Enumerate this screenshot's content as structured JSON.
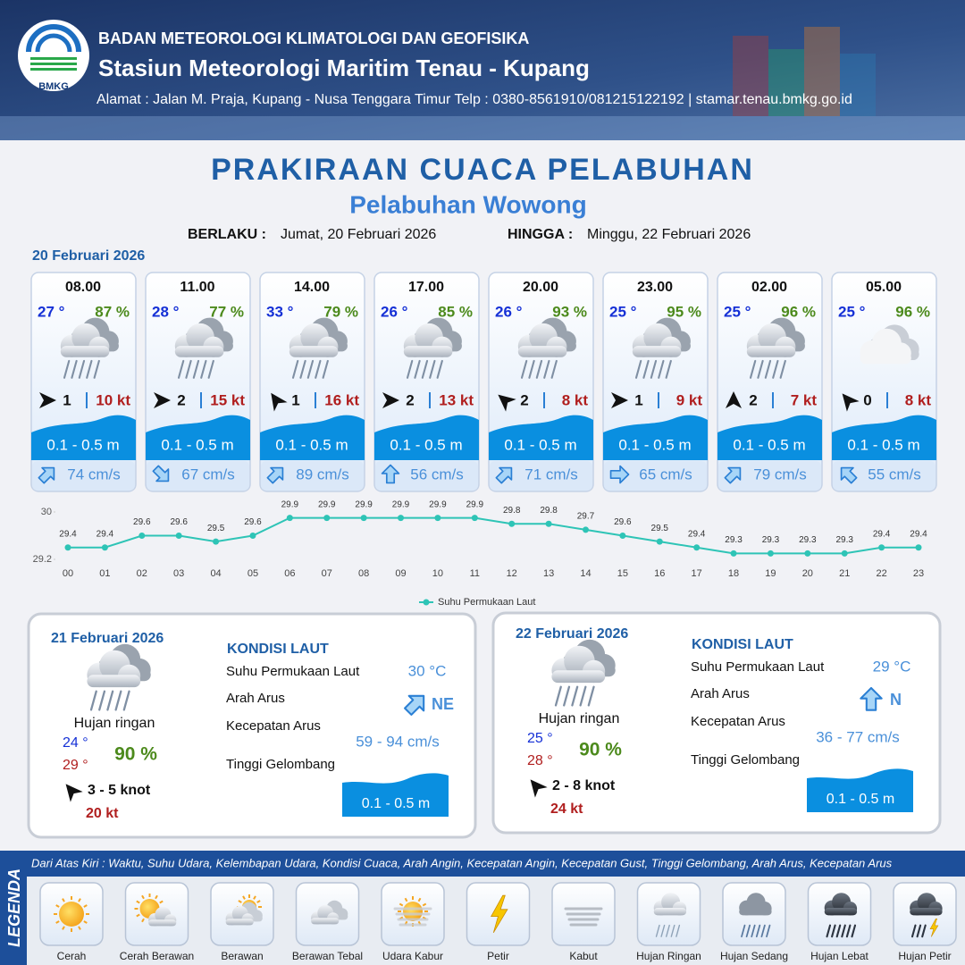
{
  "header": {
    "agency": "BADAN METEOROLOGI KLIMATOLOGI DAN GEOFISIKA",
    "station": "Stasiun Meteorologi Maritim Tenau - Kupang",
    "address": "Alamat : Jalan M. Praja, Kupang - Nusa Tenggara Timur Telp : 0380-8561910/081215122192  | stamar.tenau.bmkg.go.id",
    "logo": "BMKG"
  },
  "title": "PRAKIRAAN CUACA PELABUHAN",
  "subtitle": "Pelabuhan Wowong",
  "validity": {
    "from_label": "BERLAKU :",
    "from": "Jumat, 20 Februari 2026",
    "to_label": "HINGGA :",
    "to": "Minggu, 22 Februari 2026"
  },
  "day1": {
    "date": "20 Februari 2026",
    "cards": [
      {
        "time": "08.00",
        "temp": "27 °",
        "humidity": "87 %",
        "wind": "1",
        "gust": "10 kt",
        "wave": "0.1 - 0.5 m",
        "current": "74 cm/s"
      },
      {
        "time": "11.00",
        "temp": "28 °",
        "humidity": "77 %",
        "wind": "2",
        "gust": "15 kt",
        "wave": "0.1 - 0.5 m",
        "current": "67 cm/s"
      },
      {
        "time": "14.00",
        "temp": "33 °",
        "humidity": "79 %",
        "wind": "1",
        "gust": "16 kt",
        "wave": "0.1 - 0.5 m",
        "current": "89 cm/s"
      },
      {
        "time": "17.00",
        "temp": "26 °",
        "humidity": "85 %",
        "wind": "2",
        "gust": "13 kt",
        "wave": "0.1 - 0.5 m",
        "current": "56 cm/s"
      },
      {
        "time": "20.00",
        "temp": "26 °",
        "humidity": "93 %",
        "wind": "2",
        "gust": "8 kt",
        "wave": "0.1 - 0.5 m",
        "current": "71 cm/s"
      },
      {
        "time": "23.00",
        "temp": "25 °",
        "humidity": "95 %",
        "wind": "1",
        "gust": "9 kt",
        "wave": "0.1 - 0.5 m",
        "current": "65 cm/s"
      },
      {
        "time": "02.00",
        "temp": "25 °",
        "humidity": "96 %",
        "wind": "2",
        "gust": "7 kt",
        "wave": "0.1 - 0.5 m",
        "current": "79 cm/s"
      },
      {
        "time": "05.00",
        "temp": "25 °",
        "humidity": "96 %",
        "wind": "0",
        "gust": "8 kt",
        "wave": "0.1 - 0.5 m",
        "current": "55 cm/s"
      }
    ]
  },
  "chart_data": {
    "type": "line",
    "categories": [
      "00",
      "01",
      "02",
      "03",
      "04",
      "05",
      "06",
      "07",
      "08",
      "09",
      "10",
      "11",
      "12",
      "13",
      "14",
      "15",
      "16",
      "17",
      "18",
      "19",
      "20",
      "21",
      "22",
      "23"
    ],
    "series": [
      {
        "name": "Suhu Permukaan Laut",
        "color": "#2ec4b6",
        "values": [
          29.4,
          29.4,
          29.6,
          29.6,
          29.5,
          29.6,
          29.9,
          29.9,
          29.9,
          29.9,
          29.9,
          29.9,
          29.8,
          29.8,
          29.7,
          29.6,
          29.5,
          29.4,
          29.3,
          29.3,
          29.3,
          29.3,
          29.4,
          29.4
        ]
      }
    ],
    "ylim": [
      29.2,
      30
    ],
    "yticks": [
      29.2,
      30
    ],
    "legend": "bottom"
  },
  "summaries": [
    {
      "date": "21 Februari 2026",
      "weather": "Hujan ringan",
      "temp_min": "24 °",
      "temp_max": "29 °",
      "humidity": "90 %",
      "wind": "3  - 5 knot",
      "gust": "20 kt",
      "sea": {
        "heading": "KONDISI LAUT",
        "sst_label": "Suhu Permukaan Laut",
        "sst": "30 °C",
        "dir_label": "Arah Arus",
        "dir": "NE",
        "speed_label": "Kecepatan Arus",
        "speed": "59 - 94 cm/s",
        "wave_label": "Tinggi Gelombang",
        "wave": "0.1 - 0.5 m"
      }
    },
    {
      "date": "22 Februari 2026",
      "weather": "Hujan ringan",
      "temp_min": "25 °",
      "temp_max": "28 °",
      "humidity": "90 %",
      "wind": "2  - 8 knot",
      "gust": "24 kt",
      "sea": {
        "heading": "KONDISI LAUT",
        "sst_label": "Suhu Permukaan Laut",
        "sst": "29 °C",
        "dir_label": "Arah Arus",
        "dir": "N",
        "speed_label": "Kecepatan Arus",
        "speed": "36 - 77 cm/s",
        "wave_label": "Tinggi Gelombang",
        "wave": "0.1 - 0.5 m"
      }
    }
  ],
  "legend": {
    "title": "LEGENDA",
    "description": "Dari Atas Kiri : Waktu, Suhu Udara, Kelembapan Udara, Kondisi Cuaca, Arah Angin, Kecepatan Angin, Kecepatan Gust, Tinggi Gelombang, Arah Arus, Kecepatan Arus",
    "items": [
      "Cerah",
      "Cerah Berawan",
      "Berawan",
      "Berawan Tebal",
      "Udara Kabur",
      "Petir",
      "Kabut",
      "Hujan Ringan",
      "Hujan Sedang",
      "Hujan Lebat",
      "Hujan Petir"
    ]
  }
}
